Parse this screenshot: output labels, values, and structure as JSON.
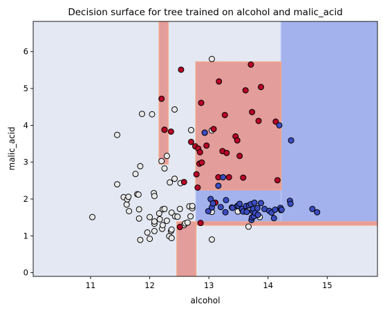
{
  "chart_data": {
    "type": "scatter",
    "title": "Decision surface for tree trained on alcohol and malic_acid",
    "xlabel": "alcohol",
    "ylabel": "malic_acid",
    "xlim": [
      10.03,
      15.85
    ],
    "ylim": [
      -0.1,
      6.82
    ],
    "xticks": [
      "11",
      "12",
      "13",
      "14",
      "15"
    ],
    "yticks": [
      "0",
      "1",
      "2",
      "3",
      "4",
      "5",
      "6"
    ],
    "grid": false,
    "colors": {
      "class_0": "#e8e8e8",
      "class_1": "#b40426",
      "class_2": "#3b4cc0",
      "region_0": "#e3e8f3",
      "region_1": "#e39d9b",
      "region_2": "#a3b1ed"
    },
    "regions": [
      {
        "class": 2,
        "x": [
          14.22,
          15.85
        ],
        "y": [
          1.36,
          6.82
        ]
      },
      {
        "class": 2,
        "x": [
          12.78,
          14.22
        ],
        "y": [
          1.36,
          2.25
        ]
      },
      {
        "class": 1,
        "x": [
          12.78,
          14.22
        ],
        "y": [
          2.25,
          5.72
        ]
      },
      {
        "class": 1,
        "x": [
          12.16,
          12.31
        ],
        "y": [
          2.95,
          6.82
        ]
      },
      {
        "class": 1,
        "x": [
          12.46,
          12.78
        ],
        "y": [
          -0.1,
          1.38
        ]
      },
      {
        "class": 1,
        "x": [
          12.78,
          15.85
        ],
        "y": [
          1.29,
          1.38
        ]
      }
    ],
    "series": [
      {
        "class": 0,
        "points": [
          [
            11.03,
            1.51
          ],
          [
            11.45,
            3.74
          ],
          [
            11.45,
            2.4
          ],
          [
            11.56,
            2.05
          ],
          [
            11.61,
            1.85
          ],
          [
            11.62,
            1.99
          ],
          [
            11.64,
            2.06
          ],
          [
            11.65,
            1.67
          ],
          [
            11.76,
            2.68
          ],
          [
            11.79,
            2.13
          ],
          [
            11.82,
            1.47
          ],
          [
            11.82,
            1.72
          ],
          [
            11.84,
            0.89
          ],
          [
            11.84,
            2.89
          ],
          [
            11.81,
            2.12
          ],
          [
            11.87,
            4.31
          ],
          [
            11.96,
            1.09
          ],
          [
            12.0,
            0.92
          ],
          [
            12.0,
            1.51
          ],
          [
            12.04,
            4.3
          ],
          [
            12.07,
            2.16
          ],
          [
            12.08,
            1.33
          ],
          [
            12.08,
            1.13
          ],
          [
            12.08,
            1.39
          ],
          [
            12.08,
            2.08
          ],
          [
            12.16,
            1.61
          ],
          [
            12.17,
            1.45
          ],
          [
            12.2,
            3.03
          ],
          [
            12.21,
            1.19
          ],
          [
            12.22,
            1.29
          ],
          [
            12.22,
            1.72
          ],
          [
            12.25,
            1.73
          ],
          [
            12.25,
            3.88
          ],
          [
            12.25,
            2.83
          ],
          [
            12.29,
            1.41
          ],
          [
            12.29,
            3.17
          ],
          [
            12.33,
            0.99
          ],
          [
            12.34,
            2.45
          ],
          [
            12.36,
            1.13
          ],
          [
            12.37,
            0.94
          ],
          [
            12.37,
            1.17
          ],
          [
            12.37,
            1.63
          ],
          [
            12.42,
            2.55
          ],
          [
            12.42,
            4.43
          ],
          [
            12.43,
            1.53
          ],
          [
            12.47,
            1.52
          ],
          [
            12.51,
            1.73
          ],
          [
            12.52,
            2.43
          ],
          [
            12.58,
            1.29
          ],
          [
            12.6,
            1.34
          ],
          [
            12.64,
            1.36
          ],
          [
            12.67,
            1.8
          ],
          [
            12.69,
            1.53
          ],
          [
            12.7,
            3.87
          ],
          [
            12.72,
            1.75
          ],
          [
            12.72,
            1.81
          ],
          [
            13.05,
            5.8
          ],
          [
            13.05,
            1.65
          ],
          [
            13.05,
            0.9
          ],
          [
            13.05,
            3.86
          ],
          [
            13.49,
            1.66
          ],
          [
            13.67,
            1.25
          ],
          [
            13.86,
            1.51
          ]
        ]
      },
      {
        "class": 1,
        "points": [
          [
            12.2,
            4.72
          ],
          [
            12.25,
            3.88
          ],
          [
            12.36,
            3.83
          ],
          [
            12.51,
            1.24
          ],
          [
            12.53,
            5.51
          ],
          [
            12.58,
            2.46
          ],
          [
            12.7,
            3.55
          ],
          [
            12.77,
            3.43
          ],
          [
            12.79,
            2.67
          ],
          [
            12.81,
            2.31
          ],
          [
            12.82,
            3.37
          ],
          [
            12.84,
            2.96
          ],
          [
            12.85,
            3.27
          ],
          [
            12.86,
            1.35
          ],
          [
            12.87,
            4.61
          ],
          [
            12.88,
            2.99
          ],
          [
            12.93,
            3.8
          ],
          [
            12.96,
            3.45
          ],
          [
            13.08,
            3.9
          ],
          [
            13.11,
            1.9
          ],
          [
            13.16,
            2.59
          ],
          [
            13.17,
            5.19
          ],
          [
            13.23,
            3.3
          ],
          [
            13.27,
            4.28
          ],
          [
            13.3,
            3.25
          ],
          [
            13.34,
            2.59
          ],
          [
            13.45,
            3.7
          ],
          [
            13.48,
            3.59
          ],
          [
            13.52,
            3.17
          ],
          [
            13.58,
            2.58
          ],
          [
            13.62,
            4.95
          ],
          [
            13.71,
            5.65
          ],
          [
            13.73,
            4.36
          ],
          [
            13.84,
            4.12
          ],
          [
            13.88,
            5.04
          ],
          [
            14.13,
            4.1
          ],
          [
            14.16,
            2.51
          ]
        ]
      },
      {
        "class": 2,
        "points": [
          [
            12.93,
            3.8
          ],
          [
            12.99,
            1.67
          ],
          [
            13.03,
            2.0
          ],
          [
            13.05,
            1.77
          ],
          [
            13.07,
            1.88
          ],
          [
            13.16,
            2.36
          ],
          [
            13.2,
            1.78
          ],
          [
            13.24,
            2.59
          ],
          [
            13.28,
            1.64
          ],
          [
            13.29,
            1.97
          ],
          [
            13.39,
            1.77
          ],
          [
            13.4,
            1.76
          ],
          [
            13.48,
            1.81
          ],
          [
            13.5,
            1.81
          ],
          [
            13.52,
            1.87
          ],
          [
            13.56,
            1.71
          ],
          [
            13.56,
            1.73
          ],
          [
            13.58,
            1.66
          ],
          [
            13.63,
            1.81
          ],
          [
            13.64,
            1.65
          ],
          [
            13.68,
            1.83
          ],
          [
            13.71,
            1.86
          ],
          [
            13.72,
            1.43
          ],
          [
            13.73,
            1.5
          ],
          [
            13.74,
            1.67
          ],
          [
            13.75,
            1.73
          ],
          [
            13.76,
            1.53
          ],
          [
            13.77,
            1.9
          ],
          [
            13.78,
            1.62
          ],
          [
            13.82,
            1.75
          ],
          [
            13.83,
            1.57
          ],
          [
            13.88,
            1.89
          ],
          [
            13.94,
            1.73
          ],
          [
            14.02,
            1.68
          ],
          [
            14.06,
            1.63
          ],
          [
            14.1,
            1.48
          ],
          [
            14.12,
            1.71
          ],
          [
            14.19,
            4.0
          ],
          [
            14.21,
            1.76
          ],
          [
            14.22,
            1.7
          ],
          [
            14.23,
            1.71
          ],
          [
            14.37,
            1.95
          ],
          [
            14.38,
            1.87
          ],
          [
            14.39,
            3.59
          ],
          [
            14.75,
            1.73
          ],
          [
            14.83,
            1.64
          ]
        ]
      }
    ]
  }
}
